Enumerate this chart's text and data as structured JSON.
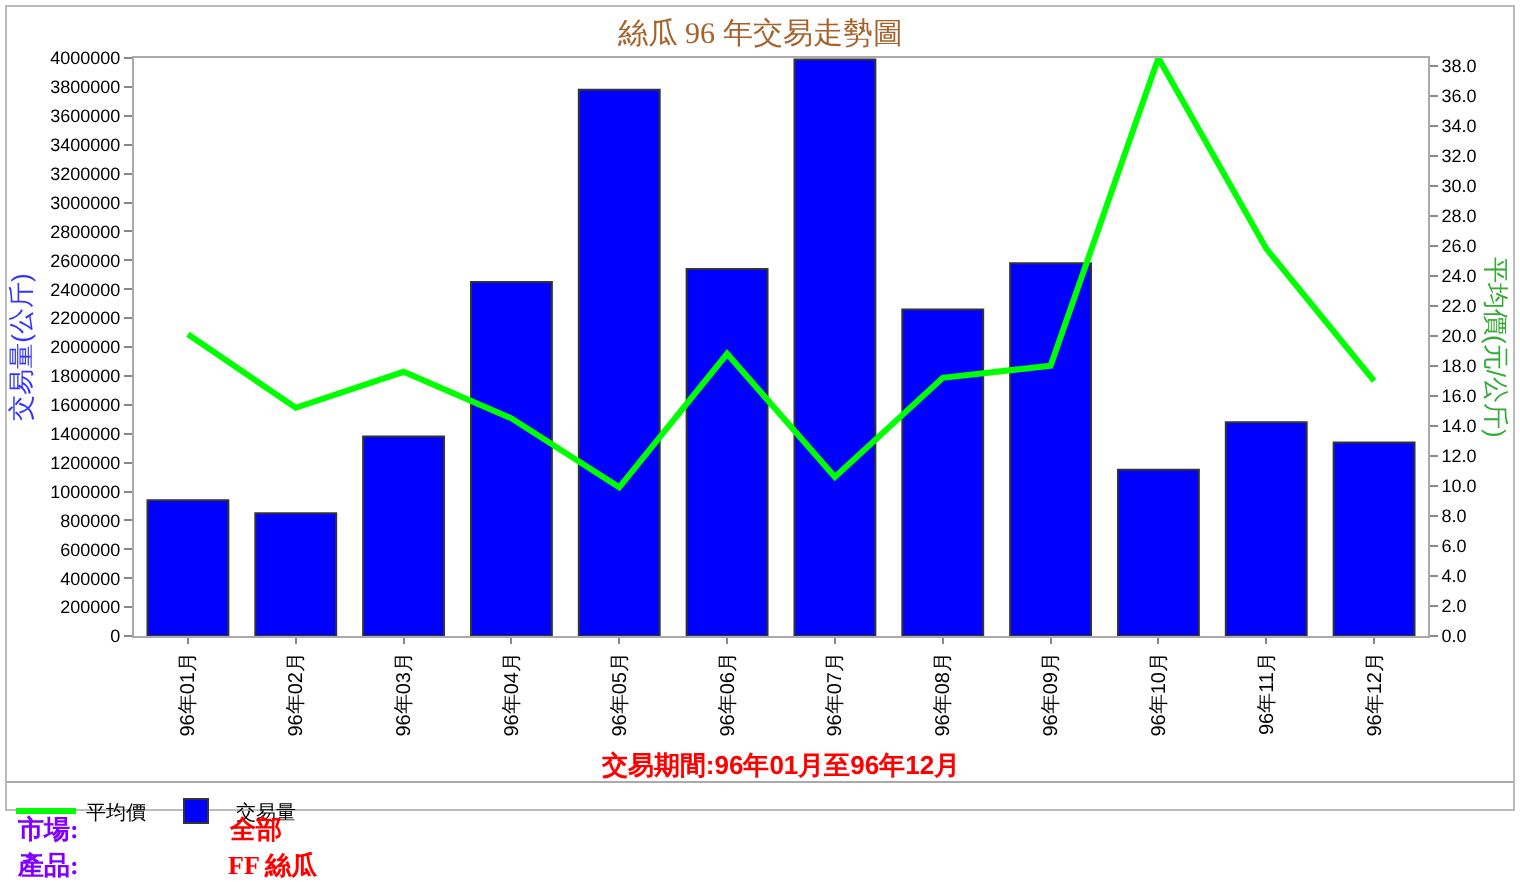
{
  "chart_data": {
    "type": "bar",
    "title": "絲瓜 96 年交易走勢圖",
    "xlabel": "交易期間:96年01月至96年12月",
    "ylabel": "交易量(公斤)",
    "y2label": "平均價(元/公斤)",
    "categories": [
      "96年01月",
      "96年02月",
      "96年03月",
      "96年04月",
      "96年05月",
      "96年06月",
      "96年07月",
      "96年08月",
      "96年09月",
      "96年10月",
      "96年11月",
      "96年12月"
    ],
    "series": [
      {
        "name": "平均價",
        "type": "line",
        "axis": "y2",
        "color": "#00ff00",
        "values": [
          20.1,
          15.2,
          17.6,
          14.5,
          9.9,
          18.8,
          10.6,
          17.2,
          18.0,
          38.5,
          25.8,
          17.0
        ]
      },
      {
        "name": "交易量",
        "color": "#0000ff",
        "values": [
          940000,
          850000,
          1380000,
          2450000,
          3780000,
          2540000,
          3990000,
          2260000,
          2580000,
          1150000,
          1480000,
          1340000
        ]
      }
    ],
    "ylim": [
      0,
      4000000
    ],
    "yticks": [
      0,
      200000,
      400000,
      600000,
      800000,
      1000000,
      1200000,
      1400000,
      1600000,
      1800000,
      2000000,
      2200000,
      2400000,
      2600000,
      2800000,
      3000000,
      3200000,
      3400000,
      3600000,
      3800000,
      4000000
    ],
    "y2lim": [
      0,
      38.5
    ],
    "y2ticks": [
      {
        "value": 0,
        "label": "0.0"
      },
      {
        "value": 2,
        "label": "2.0"
      },
      {
        "value": 4,
        "label": "4.0"
      },
      {
        "value": 6,
        "label": "6.0"
      },
      {
        "value": 8,
        "label": "8.0"
      },
      {
        "value": 10,
        "label": "10.0"
      },
      {
        "value": 12,
        "label": "12.0"
      },
      {
        "value": 14,
        "label": "14.0"
      },
      {
        "value": 16,
        "label": "16.0"
      },
      {
        "value": 18,
        "label": "18.0"
      },
      {
        "value": 20,
        "label": "20.0"
      },
      {
        "value": 22,
        "label": "22.0"
      },
      {
        "value": 24,
        "label": "24.0"
      },
      {
        "value": 26,
        "label": "26.0"
      },
      {
        "value": 28,
        "label": "28.0"
      },
      {
        "value": 30,
        "label": "30.0"
      },
      {
        "value": 32,
        "label": "32.0"
      },
      {
        "value": 34,
        "label": "34.0"
      },
      {
        "value": 36,
        "label": "36.0"
      },
      {
        "value": 38,
        "label": "38.0"
      }
    ],
    "annotations": [
      "市場:",
      "全部",
      "產品:",
      "FF 絲瓜"
    ],
    "grid": false,
    "legend": "bottom",
    "line_style": "solid"
  }
}
